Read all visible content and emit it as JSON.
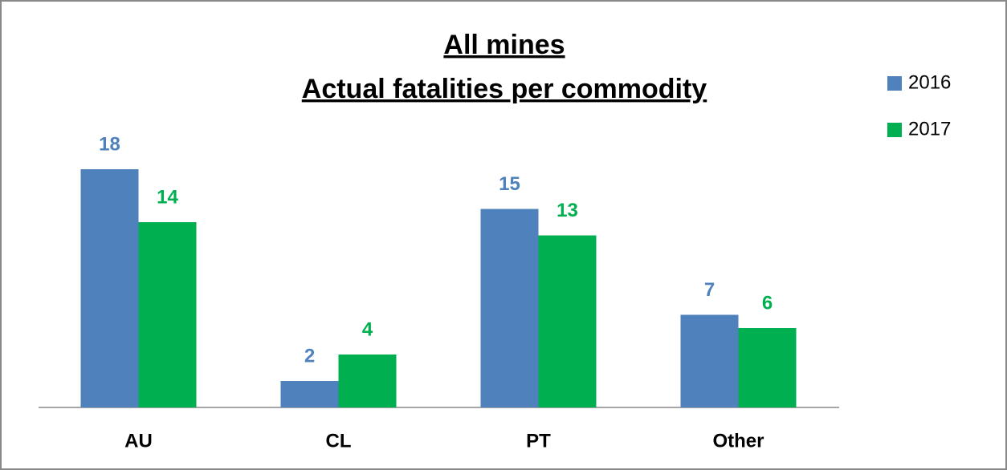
{
  "chart_data": {
    "type": "bar",
    "title": "All mines",
    "subtitle": "Actual fatalities per commodity",
    "categories": [
      "AU",
      "CL",
      "PT",
      "Other"
    ],
    "series": [
      {
        "name": "2016",
        "color": "#4f81bd",
        "values": [
          18,
          2,
          15,
          7
        ]
      },
      {
        "name": "2017",
        "color": "#00b050",
        "values": [
          14,
          4,
          13,
          6
        ]
      }
    ],
    "legend": "right"
  }
}
